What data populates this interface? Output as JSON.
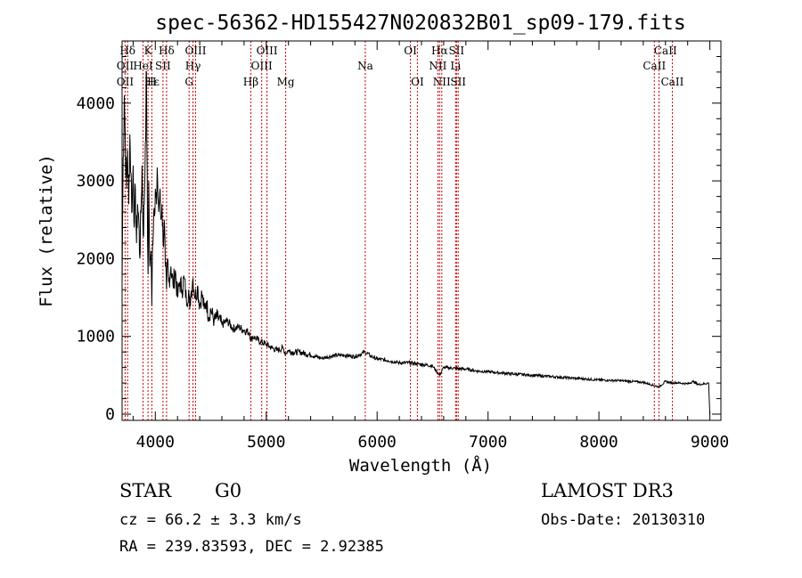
{
  "chart_data": {
    "type": "line",
    "title": "spec-56362-HD155427N020832B01_sp09-179.fits",
    "xlabel": "Wavelength (Å)",
    "ylabel": "Flux (relative)",
    "xlim": [
      3700,
      9100
    ],
    "ylim": [
      -80,
      4800
    ],
    "xticks": [
      4000,
      5000,
      6000,
      7000,
      8000,
      9000
    ],
    "xtick_labels": [
      "4000",
      "5000",
      "6000",
      "7000",
      "8000",
      "9000"
    ],
    "yticks": [
      0,
      1000,
      2000,
      3000,
      4000
    ],
    "ytick_labels": [
      "0",
      "1000",
      "2000",
      "3000",
      "4000"
    ],
    "grid": false,
    "series": [
      {
        "name": "flux",
        "x": [
          3700,
          3710,
          3720,
          3730,
          3740,
          3750,
          3760,
          3770,
          3780,
          3790,
          3800,
          3810,
          3820,
          3830,
          3840,
          3850,
          3860,
          3870,
          3880,
          3890,
          3900,
          3910,
          3920,
          3930,
          3935,
          3940,
          3950,
          3960,
          3968,
          3975,
          3985,
          4000,
          4010,
          4020,
          4030,
          4040,
          4050,
          4060,
          4070,
          4080,
          4090,
          4101,
          4110,
          4120,
          4140,
          4160,
          4180,
          4200,
          4220,
          4240,
          4260,
          4280,
          4300,
          4310,
          4320,
          4340,
          4360,
          4380,
          4400,
          4420,
          4440,
          4460,
          4480,
          4500,
          4530,
          4560,
          4600,
          4650,
          4700,
          4750,
          4800,
          4850,
          4861,
          4880,
          4900,
          4950,
          5000,
          5050,
          5100,
          5150,
          5175,
          5200,
          5250,
          5300,
          5400,
          5500,
          5600,
          5700,
          5800,
          5893,
          5950,
          6000,
          6100,
          6200,
          6300,
          6400,
          6500,
          6563,
          6600,
          6700,
          6800,
          6900,
          7000,
          7200,
          7400,
          7600,
          7800,
          8000,
          8200,
          8400,
          8542,
          8600,
          8662,
          8700,
          8800,
          8850,
          8900,
          8990,
          9000
        ],
        "values": [
          1700,
          3300,
          4100,
          3500,
          2900,
          3400,
          2700,
          3600,
          3100,
          2600,
          3200,
          2400,
          2900,
          2200,
          2700,
          2500,
          2000,
          2600,
          3200,
          2300,
          2700,
          3500,
          4400,
          2200,
          1800,
          3000,
          1900,
          2100,
          1400,
          2200,
          2600,
          2900,
          2700,
          3050,
          2600,
          2850,
          2500,
          2700,
          2200,
          2500,
          1900,
          1600,
          2000,
          1700,
          1900,
          1650,
          1850,
          1500,
          1700,
          1600,
          1750,
          1450,
          1600,
          1350,
          1550,
          1750,
          1500,
          1650,
          1400,
          1550,
          1350,
          1450,
          1250,
          1350,
          1200,
          1250,
          1150,
          1200,
          1100,
          1120,
          1080,
          1050,
          950,
          1000,
          980,
          930,
          900,
          850,
          820,
          850,
          780,
          820,
          790,
          800,
          760,
          720,
          750,
          760,
          740,
          800,
          740,
          710,
          690,
          660,
          660,
          640,
          620,
          500,
          600,
          590,
          580,
          555,
          545,
          520,
          500,
          480,
          460,
          440,
          430,
          410,
          350,
          420,
          400,
          405,
          390,
          420,
          380,
          400,
          0
        ]
      }
    ],
    "annotations": [
      {
        "label": "Hδ",
        "x": 3750,
        "row": 1
      },
      {
        "label": "K",
        "x": 3934,
        "row": 1
      },
      {
        "label": "Hδ",
        "x": 4101,
        "row": 1
      },
      {
        "label": "OIII",
        "x": 4363,
        "row": 1
      },
      {
        "label": "OIII",
        "x": 5007,
        "row": 1
      },
      {
        "label": "OI",
        "x": 6300,
        "row": 1
      },
      {
        "label": "Hα",
        "x": 6563,
        "row": 1
      },
      {
        "label": "SII",
        "x": 6716,
        "row": 1
      },
      {
        "label": "CaII",
        "x": 8600,
        "row": 1
      },
      {
        "label": "OII",
        "x": 3727,
        "row": 2
      },
      {
        "label": "HeI",
        "x": 3889,
        "row": 2
      },
      {
        "label": "SII",
        "x": 4069,
        "row": 2
      },
      {
        "label": "Hγ",
        "x": 4340,
        "row": 2
      },
      {
        "label": "OIII",
        "x": 4959,
        "row": 2
      },
      {
        "label": "Na",
        "x": 5893,
        "row": 2
      },
      {
        "label": "NII",
        "x": 6548,
        "row": 2
      },
      {
        "label": "Li",
        "x": 6708,
        "row": 2
      },
      {
        "label": "CaII",
        "x": 8500,
        "row": 2
      },
      {
        "label": "OII",
        "x": 3727,
        "row": 3
      },
      {
        "label": "Hε",
        "x": 3970,
        "row": 3
      },
      {
        "label": "H",
        "x": 3968,
        "row": 3
      },
      {
        "label": "G",
        "x": 4304,
        "row": 3
      },
      {
        "label": "Hβ",
        "x": 4861,
        "row": 3
      },
      {
        "label": "Mg",
        "x": 5175,
        "row": 3
      },
      {
        "label": "OI",
        "x": 6363,
        "row": 3
      },
      {
        "label": "NII",
        "x": 6583,
        "row": 3
      },
      {
        "label": "SII",
        "x": 6731,
        "row": 3
      },
      {
        "label": "CaII",
        "x": 8662,
        "row": 3
      }
    ],
    "line_markers": [
      3727,
      3750,
      3889,
      3934,
      3968,
      4069,
      4101,
      4304,
      4340,
      4363,
      4861,
      4959,
      5007,
      5175,
      5893,
      6300,
      6363,
      6548,
      6563,
      6583,
      6708,
      6716,
      6731,
      8500,
      8542,
      8662
    ]
  },
  "footer": {
    "object_type": "STAR",
    "subclass": "G0",
    "survey": "LAMOST DR3",
    "redshift": "cz = 66.2 ± 3.3 km/s",
    "obs_date": "Obs-Date: 20130310",
    "coords": "RA = 239.83593, DEC =    2.92385"
  },
  "colors": {
    "line_marker": "#cc0000",
    "spectrum": "#000000",
    "text": "#000000"
  }
}
